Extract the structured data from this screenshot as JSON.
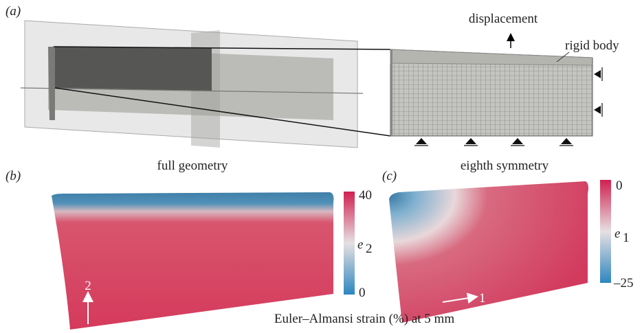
{
  "panel_a": {
    "label": "(a)",
    "left_caption": "full geometry",
    "right_caption": "eighth symmetry",
    "displacement": "displacement",
    "rigid_body": "rigid body"
  },
  "panel_b": {
    "label": "(b)",
    "colorbar_max": "40",
    "colorbar_min": "0",
    "symbol": "e",
    "subscript": "2",
    "arrow_label": "2"
  },
  "panel_c": {
    "label": "(c)",
    "colorbar_max": "0",
    "colorbar_min": "–25",
    "symbol": "e",
    "subscript": "1",
    "arrow_label": "1"
  },
  "caption": "Euler–Almansi strain (%) at 5 mm"
}
